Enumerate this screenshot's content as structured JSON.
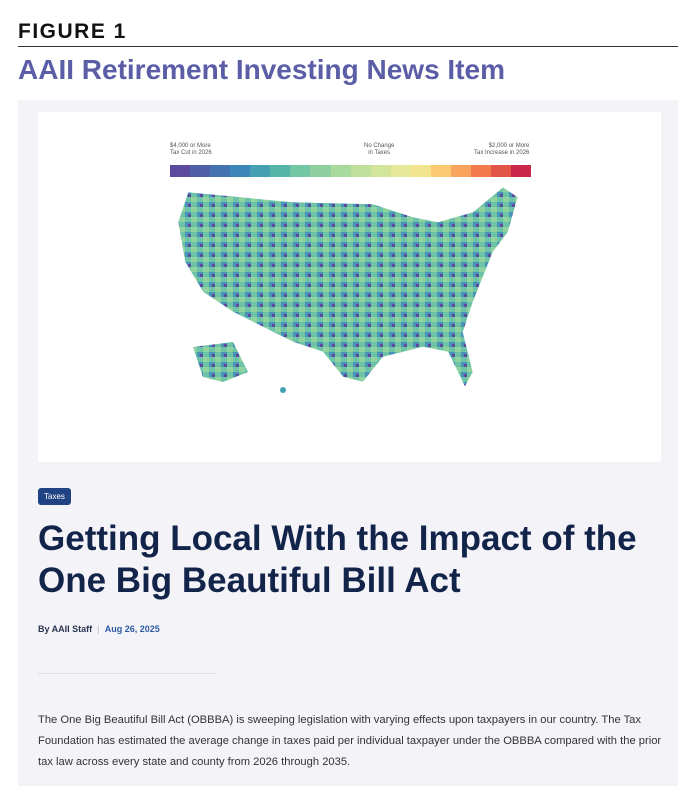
{
  "figure_label": "FIGURE 1",
  "page_title": "AAII Retirement Investing News Item",
  "map": {
    "legend": {
      "left": "$4,000 or More\nTax Cut in 2026",
      "middle": "No Change\nin Taxes",
      "right": "$2,000 or More\nTax Increase in 2026"
    },
    "colors": [
      "#5b4a9e",
      "#4f5fa8",
      "#4471b0",
      "#3b88b8",
      "#46a0b3",
      "#55b5a8",
      "#74c7a3",
      "#8ed0a0",
      "#a8da9e",
      "#bfe09c",
      "#d3e59a",
      "#e6ea98",
      "#f2e48e",
      "#fbc96f",
      "#f9a45c",
      "#f37a4a",
      "#e25448",
      "#c9284a"
    ]
  },
  "article": {
    "tag": "Taxes",
    "headline": "Getting Local With the Impact of the One Big Beautiful Bill Act",
    "author": "By AAII Staff",
    "date": "Aug 26, 2025",
    "body": "The One Big Beautiful Bill Act (OBBBA) is sweeping legislation with varying effects upon taxpayers in our country. The Tax Foundation has estimated the average change in taxes paid per individual taxpayer under the OBBBA compared with the prior tax law across every state and county from 2026 through 2035."
  }
}
